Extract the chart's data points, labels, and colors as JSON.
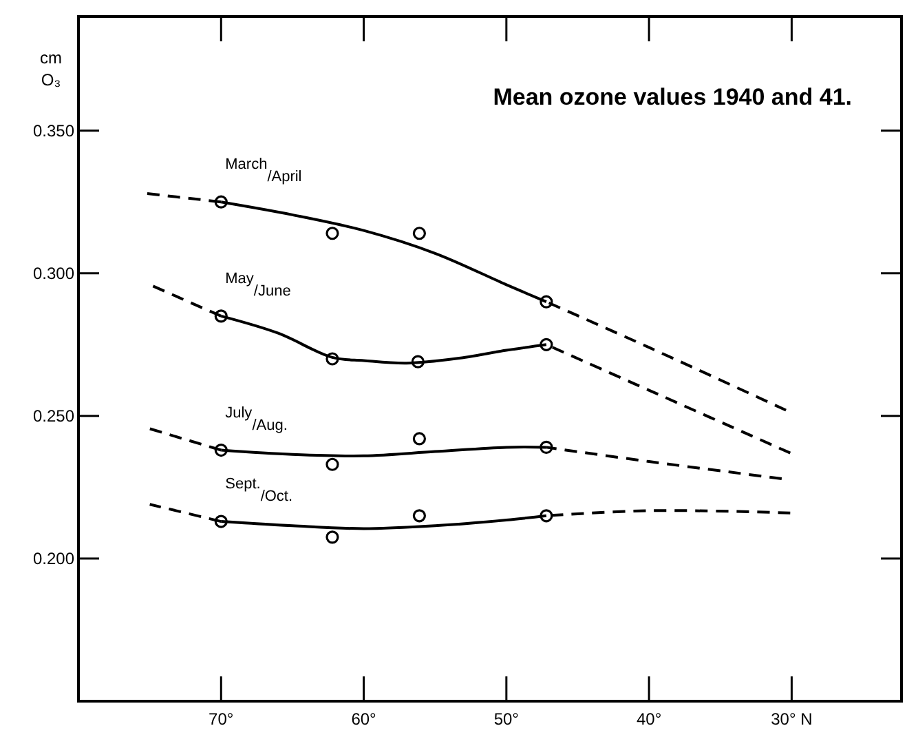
{
  "chart_data": {
    "type": "line",
    "title": "Mean ozone values 1940 and 41.",
    "ylabel": "cm O₃",
    "xlim": [
      80,
      22.3
    ],
    "ylim": [
      0.15,
      0.39
    ],
    "xticks": [
      {
        "value": 70,
        "label": "70°"
      },
      {
        "value": 60,
        "label": "60°"
      },
      {
        "value": 50,
        "label": "50°"
      },
      {
        "value": 40,
        "label": "40°"
      },
      {
        "value": 30,
        "label": "30° N"
      }
    ],
    "yticks": [
      {
        "value": 0.2,
        "label": "0.200"
      },
      {
        "value": 0.25,
        "label": "0.250"
      },
      {
        "value": 0.3,
        "label": "0.300"
      },
      {
        "value": 0.35,
        "label": "0.350"
      }
    ],
    "grid": false,
    "series": [
      {
        "name": "March/April",
        "type": "scatter",
        "marker": "circle",
        "color": "#000000",
        "x": [
          70,
          62.2,
          56.1,
          47.2
        ],
        "values": [
          0.325,
          0.314,
          0.314,
          0.29
        ]
      },
      {
        "line_style": "solid",
        "color": "#000000",
        "x": [
          70,
          65,
          60,
          55,
          50,
          47.2
        ],
        "values": [
          0.325,
          0.3205,
          0.315,
          0.307,
          0.296,
          0.29
        ]
      },
      {
        "line_style": "dashed",
        "color": "#000000",
        "x": [
          75.3,
          70,
          60,
          47.2,
          40,
          30.4
        ],
        "values": [
          0.328,
          0.325,
          null,
          0.29,
          0.274,
          0.252
        ]
      },
      {
        "name": "May/June",
        "type": "scatter",
        "marker": "circle",
        "color": "#000000",
        "x": [
          70,
          62.2,
          56.2,
          47.2
        ],
        "values": [
          0.285,
          0.27,
          0.269,
          0.275
        ]
      },
      {
        "line_style": "solid",
        "color": "#000000",
        "x": [
          70,
          66,
          62.2,
          60,
          57,
          53.5,
          50,
          47.2
        ],
        "values": [
          0.285,
          0.279,
          0.2705,
          0.2694,
          0.2685,
          0.2701,
          0.273,
          0.275
        ]
      },
      {
        "line_style": "dashed",
        "color": "#000000",
        "x": [
          75,
          70,
          60,
          47.2,
          40,
          30.1
        ],
        "values": [
          0.296,
          0.285,
          null,
          0.275,
          0.259,
          0.237
        ]
      },
      {
        "name": "July/Aug.",
        "type": "scatter",
        "marker": "circle",
        "color": "#000000",
        "x": [
          70,
          62.2,
          56.1,
          47.2
        ],
        "values": [
          0.238,
          0.233,
          0.242,
          0.239
        ]
      },
      {
        "line_style": "solid",
        "color": "#000000",
        "x": [
          70,
          65,
          60,
          55,
          50,
          47.2
        ],
        "values": [
          0.238,
          0.2365,
          0.236,
          0.2375,
          0.239,
          0.239
        ]
      },
      {
        "line_style": "dashed",
        "color": "#000000",
        "x": [
          75,
          70,
          60,
          47.2,
          40,
          30.7
        ],
        "values": [
          0.2455,
          0.238,
          null,
          0.239,
          0.234,
          0.228
        ]
      },
      {
        "name": "Sept./Oct.",
        "type": "scatter",
        "marker": "circle",
        "color": "#000000",
        "x": [
          70,
          62.2,
          56.1,
          47.2
        ],
        "values": [
          0.213,
          0.2075,
          0.215,
          0.215
        ]
      },
      {
        "line_style": "solid",
        "color": "#000000",
        "x": [
          70,
          65,
          60,
          55,
          50,
          47.2
        ],
        "values": [
          0.213,
          0.2115,
          0.2105,
          0.2115,
          0.2135,
          0.215
        ]
      },
      {
        "line_style": "dashed",
        "color": "#000000",
        "x": [
          75,
          70,
          60,
          47.2,
          40,
          30.1
        ],
        "values": [
          0.219,
          0.213,
          null,
          0.215,
          0.2168,
          0.216
        ]
      }
    ]
  }
}
